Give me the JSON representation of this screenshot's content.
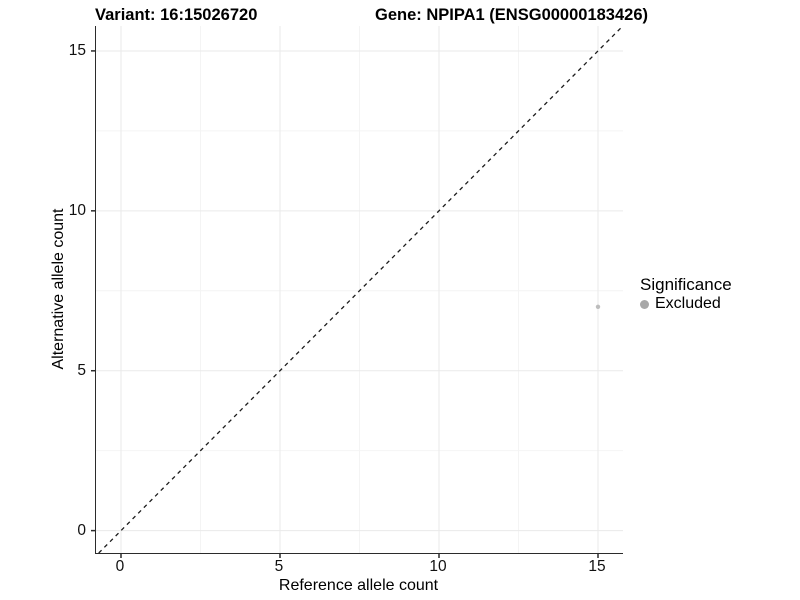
{
  "chart_data": {
    "type": "scatter",
    "title_left": "Variant: 16:15026720",
    "title_right": "Gene: NPIPA1 (ENSG00000183426)",
    "xlabel": "Reference allele count",
    "ylabel": "Alternative allele count",
    "xlim": [
      -0.786,
      15.786
    ],
    "ylim": [
      -0.7,
      15.78
    ],
    "xticks": [
      0,
      5,
      10,
      15
    ],
    "yticks": [
      0,
      5,
      10,
      15
    ],
    "xminor": [
      2.5,
      7.5,
      12.5
    ],
    "yminor": [
      2.5,
      7.5,
      12.5
    ],
    "grid": "major+minor",
    "reference_line": {
      "kind": "identity",
      "slope": 1,
      "intercept": 0,
      "linestyle": "dashed"
    },
    "series": [
      {
        "name": "Excluded",
        "points": [
          {
            "x": 15,
            "y": 7
          }
        ]
      }
    ],
    "legend": {
      "title": "Significance",
      "position": "right",
      "items": [
        {
          "label": "Excluded"
        }
      ]
    },
    "colors": {
      "point": "#bdbdbd",
      "legend_dot": "#a8a8a8",
      "grid_major": "#eaeaea",
      "grid_minor": "#f4f4f4",
      "axis": "#2b2b2b",
      "reference_line": "#1c1c1c",
      "text": "#000000"
    }
  }
}
